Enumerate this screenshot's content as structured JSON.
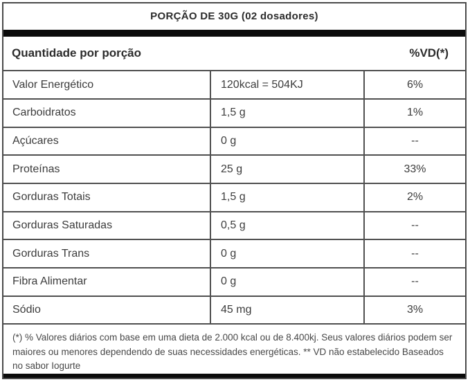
{
  "header": {
    "portion_title": "PORÇÃO DE 30G (02 dosadores)",
    "quantity_label": "Quantidade por porção",
    "vd_label": "%VD(*)"
  },
  "table": {
    "rows": [
      {
        "nutrient": "Valor Energético",
        "amount": "120kcal = 504KJ",
        "vd": "6%"
      },
      {
        "nutrient": "Carboidratos",
        "amount": "1,5 g",
        "vd": "1%"
      },
      {
        "nutrient": "Açúcares",
        "amount": "0 g",
        "vd": "--"
      },
      {
        "nutrient": "Proteínas",
        "amount": "25 g",
        "vd": "33%"
      },
      {
        "nutrient": "Gorduras Totais",
        "amount": "1,5 g",
        "vd": "2%"
      },
      {
        "nutrient": "Gorduras Saturadas",
        "amount": "0,5 g",
        "vd": "--"
      },
      {
        "nutrient": "Gorduras Trans",
        "amount": "0 g",
        "vd": "--"
      },
      {
        "nutrient": "Fibra Alimentar",
        "amount": "0 g",
        "vd": "--"
      },
      {
        "nutrient": "Sódio",
        "amount": "45 mg",
        "vd": "3%"
      }
    ]
  },
  "footnote": {
    "text": "(*) % Valores diários com base em uma dieta de 2.000 kcal ou de 8.400kj. Seus valores diários podem ser maiores ou menores dependendo de suas necessidades energéticas. ** VD não estabelecido Baseados no sabor Iogurte"
  },
  "colors": {
    "text": "#3c3c3c",
    "border": "#4f4f4f",
    "bar": "#0b0b0b",
    "background": "#ffffff"
  }
}
